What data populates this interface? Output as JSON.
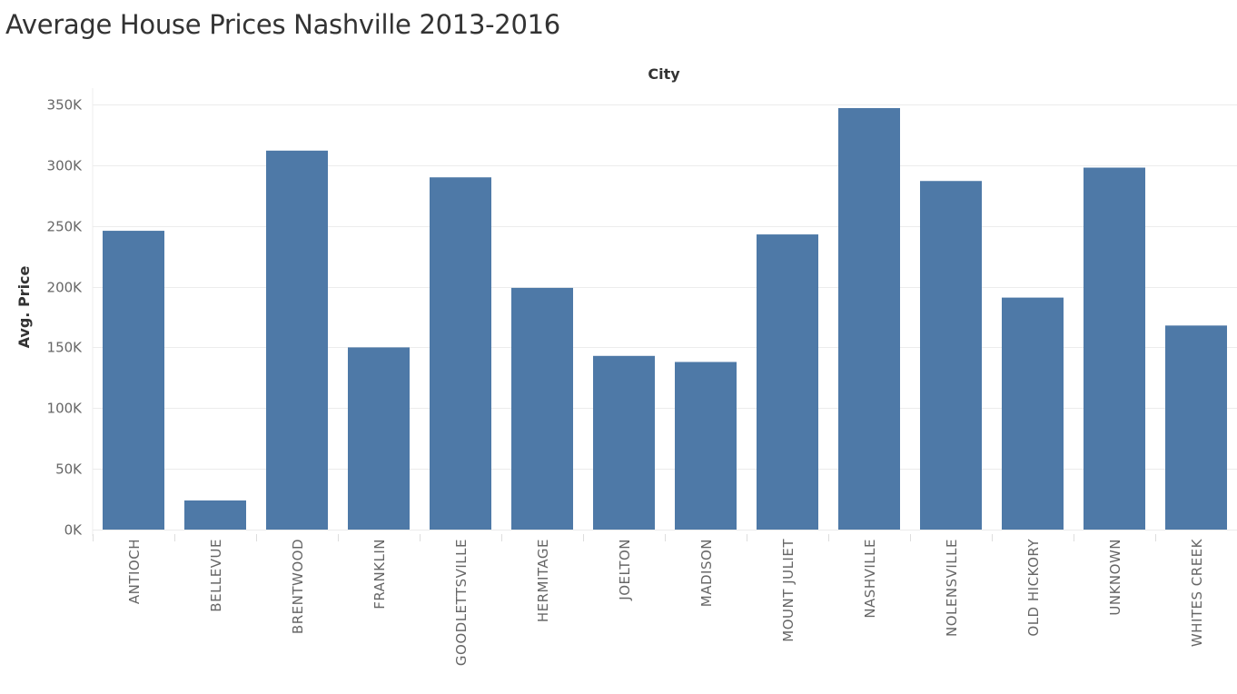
{
  "chart_data": {
    "type": "bar",
    "title": "Average House Prices Nashville 2013-2016",
    "xlabel": "City",
    "ylabel": "Avg. Price",
    "categories": [
      "ANTIOCH",
      "BELLEVUE",
      "BRENTWOOD",
      "FRANKLIN",
      "GOODLETTSVILLE",
      "HERMITAGE",
      "JOELTON",
      "MADISON",
      "MOUNT JULIET",
      "NASHVILLE",
      "NOLENSVILLE",
      "OLD HICKORY",
      "UNKNOWN",
      "WHITES CREEK"
    ],
    "values": [
      246000,
      24000,
      312000,
      150000,
      290000,
      199000,
      143000,
      138000,
      243000,
      347000,
      287000,
      191000,
      298000,
      168000
    ],
    "ylim": [
      0,
      350000
    ],
    "yticks": [
      0,
      50000,
      100000,
      150000,
      200000,
      250000,
      300000,
      350000
    ],
    "ytick_labels": [
      "0K",
      "50K",
      "100K",
      "150K",
      "200K",
      "250K",
      "300K",
      "350K"
    ],
    "grid": true,
    "legend": "none",
    "colors": {
      "bar": "#4e79a7",
      "grid": "#ececec",
      "text": "#666666"
    }
  }
}
